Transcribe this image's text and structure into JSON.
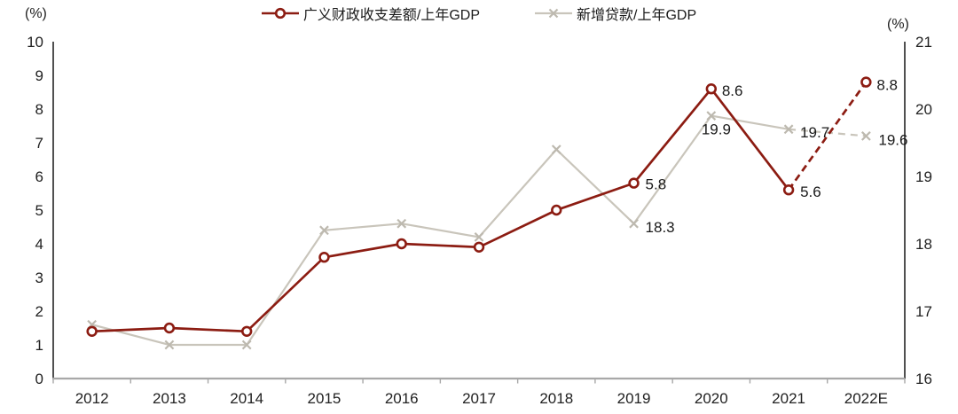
{
  "chart_data": {
    "type": "line",
    "title": "",
    "categories": [
      "2012",
      "2013",
      "2014",
      "2015",
      "2016",
      "2017",
      "2018",
      "2019",
      "2020",
      "2021",
      "2022E"
    ],
    "series": [
      {
        "name": "广义财政收支差额/上年GDP",
        "axis": "left",
        "marker": "circle",
        "color": "#8C1C12",
        "values": [
          1.4,
          1.5,
          1.4,
          3.6,
          4.0,
          3.9,
          5.0,
          5.8,
          8.6,
          5.6,
          8.8
        ],
        "dashed_from_index": 9,
        "point_labels": {
          "7": "5.8",
          "8": "8.6",
          "9": "5.6",
          "10": "8.8"
        }
      },
      {
        "name": "新增贷款/上年GDP",
        "axis": "right",
        "marker": "x",
        "color": "#C9C5BB",
        "marker_color": "#BDB9AF",
        "values": [
          16.8,
          16.5,
          16.5,
          18.2,
          18.3,
          18.1,
          19.4,
          18.3,
          19.9,
          19.7,
          19.6
        ],
        "dashed_from_index": 9,
        "point_labels": {
          "7": "18.3",
          "8": "19.9",
          "9": "19.7",
          "10": "19.6"
        }
      }
    ],
    "left_axis": {
      "unit": "(%)",
      "min": 0,
      "max": 10,
      "step": 1,
      "ticks": [
        "0",
        "1",
        "2",
        "3",
        "4",
        "5",
        "6",
        "7",
        "8",
        "9",
        "10"
      ]
    },
    "right_axis": {
      "unit": "(%)",
      "min": 16,
      "max": 21,
      "step": 1,
      "ticks": [
        "16",
        "17",
        "18",
        "19",
        "20",
        "21"
      ]
    },
    "legend_position": "top",
    "grid": false
  },
  "colors": {
    "axis_line": "#3c3c3c",
    "baseline": "#a8a8a8",
    "tick": "#a8a8a8",
    "tick_text": "#212121",
    "point_label_text": "#1a1a1a",
    "background": "#ffffff"
  }
}
